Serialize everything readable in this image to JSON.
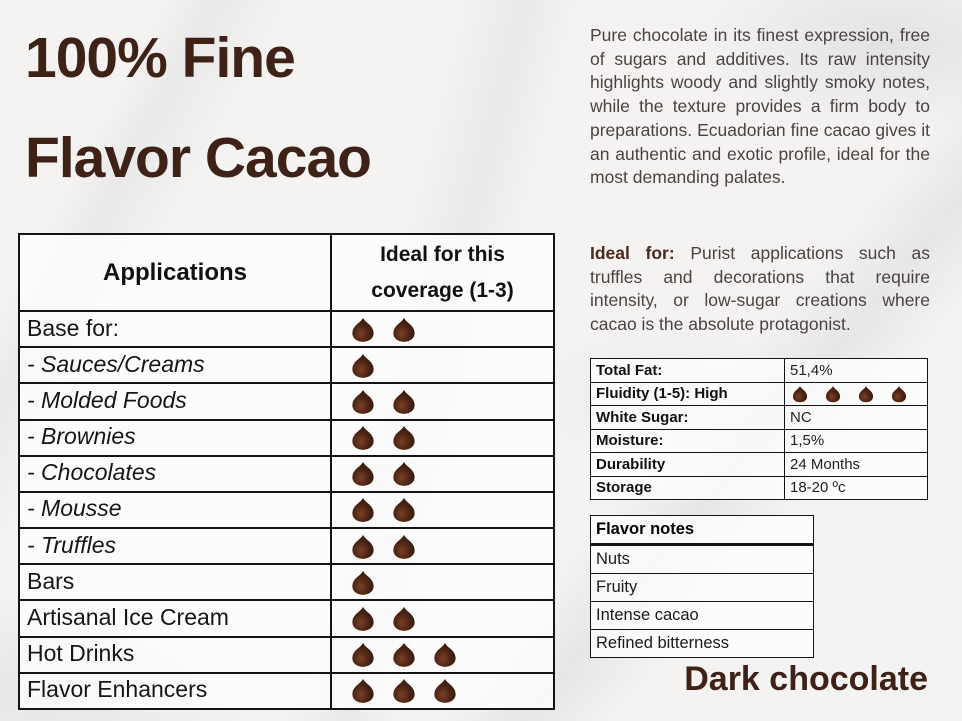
{
  "page": {
    "title_line1": "100% Fine",
    "title_line2": "Flavor Cacao",
    "product_label": "Dark chocolate"
  },
  "description": "Pure chocolate in its finest expression, free of sugars and additives. Its raw intensity highlights woody and slightly smoky notes, while the texture provides a firm body to preparations. Ecuadorian fine cacao gives it an authentic and exotic profile, ideal for the most demanding palates.",
  "ideal_for": {
    "label": "Ideal for:",
    "text": "Purist applications such as truffles and decorations that require intensity, or low-sugar creations where cacao is the absolute protagonist."
  },
  "applications_table": {
    "headers": [
      "Applications",
      "Ideal for this coverage (1-3)"
    ],
    "coverage_scale_max": 3,
    "rows": [
      {
        "label": "Base for:",
        "italic": false,
        "chips": 2
      },
      {
        "label": "- Sauces/Creams",
        "italic": true,
        "chips": 1
      },
      {
        "label": "- Molded Foods",
        "italic": true,
        "chips": 2
      },
      {
        "label": "- Brownies",
        "italic": true,
        "chips": 2
      },
      {
        "label": "- Chocolates",
        "italic": true,
        "chips": 2
      },
      {
        "label": "- Mousse",
        "italic": true,
        "chips": 2
      },
      {
        "label": "- Truffles",
        "italic": true,
        "chips": 2
      },
      {
        "label": "Bars",
        "italic": false,
        "chips": 1
      },
      {
        "label": "Artisanal Ice Cream",
        "italic": false,
        "chips": 2
      },
      {
        "label": "Hot Drinks",
        "italic": false,
        "chips": 3
      },
      {
        "label": "Flavor Enhancers",
        "italic": false,
        "chips": 3
      }
    ]
  },
  "specs_table": {
    "rows": [
      {
        "label": "Total Fat:",
        "value": "51,4%",
        "chips": 0
      },
      {
        "label": "Fluidity (1-5): High",
        "value": "",
        "chips": 4
      },
      {
        "label": "White Sugar:",
        "value": "NC",
        "chips": 0
      },
      {
        "label": "Moisture:",
        "value": "1,5%",
        "chips": 0
      },
      {
        "label": "Durability",
        "value": "24 Months",
        "chips": 0
      },
      {
        "label": "Storage",
        "value": "18-20 ºc",
        "chips": 0
      }
    ]
  },
  "flavor_notes": {
    "header": "Flavor notes",
    "items": [
      "Nuts",
      "Fruity",
      "Intense cacao",
      "Refined bitterness"
    ]
  },
  "icons": {
    "chip": "chocolate-chip-icon"
  },
  "colors": {
    "title_brown": "#3e2217",
    "body_text": "#4d4242",
    "ideal_for_brown": "#4a2a1e",
    "table_border": "#141414",
    "chip_highlight": "#7a4126",
    "chip_mid": "#4e2515",
    "chip_dark": "#28120a"
  }
}
